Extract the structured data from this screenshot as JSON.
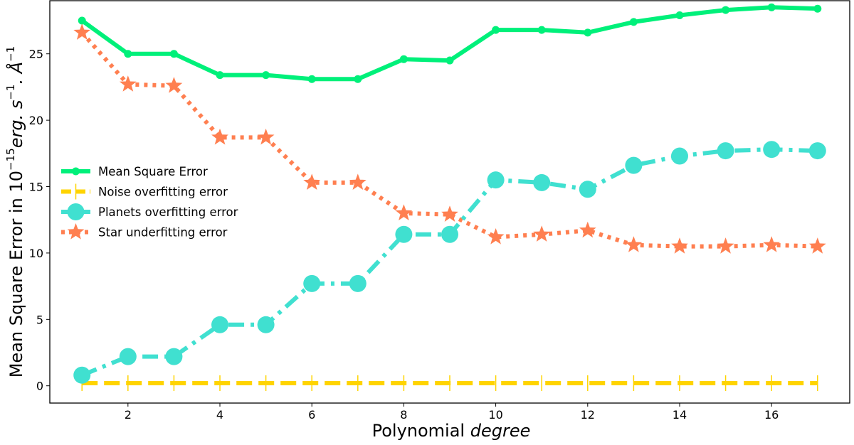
{
  "chart_data": {
    "type": "line",
    "xlabel": "Polynomial",
    "xlabel_italic": "degree",
    "ylabel": "Mean Square Error in 10",
    "ylabel_exp": "−15",
    "ylabel_unit": "erg. s",
    "ylabel_unit_exp": "−1",
    "ylabel_unit2": ". Å",
    "ylabel_unit2_exp": "−1",
    "xlim": [
      0.3,
      17.7
    ],
    "ylim": [
      -1.3,
      29.0
    ],
    "xticks": [
      2,
      4,
      6,
      8,
      10,
      12,
      14,
      16
    ],
    "yticks": [
      0,
      5,
      10,
      15,
      20,
      25
    ],
    "legend_position": "center-left",
    "x": [
      1,
      2,
      3,
      4,
      5,
      6,
      7,
      8,
      9,
      10,
      11,
      12,
      13,
      14,
      15,
      16,
      17
    ],
    "series": [
      {
        "name": "Mean Square Error",
        "color": "#00f07a",
        "style": "solid",
        "marker": "circle-small",
        "values": [
          27.5,
          25.0,
          25.0,
          23.4,
          23.4,
          23.1,
          23.1,
          24.6,
          24.5,
          26.8,
          26.8,
          26.6,
          27.4,
          27.9,
          28.3,
          28.5,
          28.4
        ]
      },
      {
        "name": "Noise overfitting error",
        "color": "#ffd400",
        "style": "dashed",
        "marker": "vline",
        "values": [
          0.2,
          0.2,
          0.2,
          0.2,
          0.2,
          0.2,
          0.2,
          0.2,
          0.2,
          0.2,
          0.2,
          0.2,
          0.2,
          0.2,
          0.2,
          0.2,
          0.2
        ]
      },
      {
        "name": "Planets overfitting error",
        "color": "#40e0d0",
        "style": "dashdot",
        "marker": "circle-large",
        "values": [
          0.8,
          2.2,
          2.2,
          4.6,
          4.6,
          7.7,
          7.7,
          11.4,
          11.4,
          15.5,
          15.3,
          14.8,
          16.6,
          17.3,
          17.7,
          17.8,
          17.7
        ]
      },
      {
        "name": "Star underfitting error",
        "color": "#ff7f50",
        "style": "dotted",
        "marker": "star",
        "values": [
          26.6,
          22.7,
          22.6,
          18.7,
          18.7,
          15.3,
          15.3,
          13.0,
          12.9,
          11.2,
          11.4,
          11.7,
          10.6,
          10.5,
          10.5,
          10.6,
          10.5
        ]
      }
    ]
  }
}
